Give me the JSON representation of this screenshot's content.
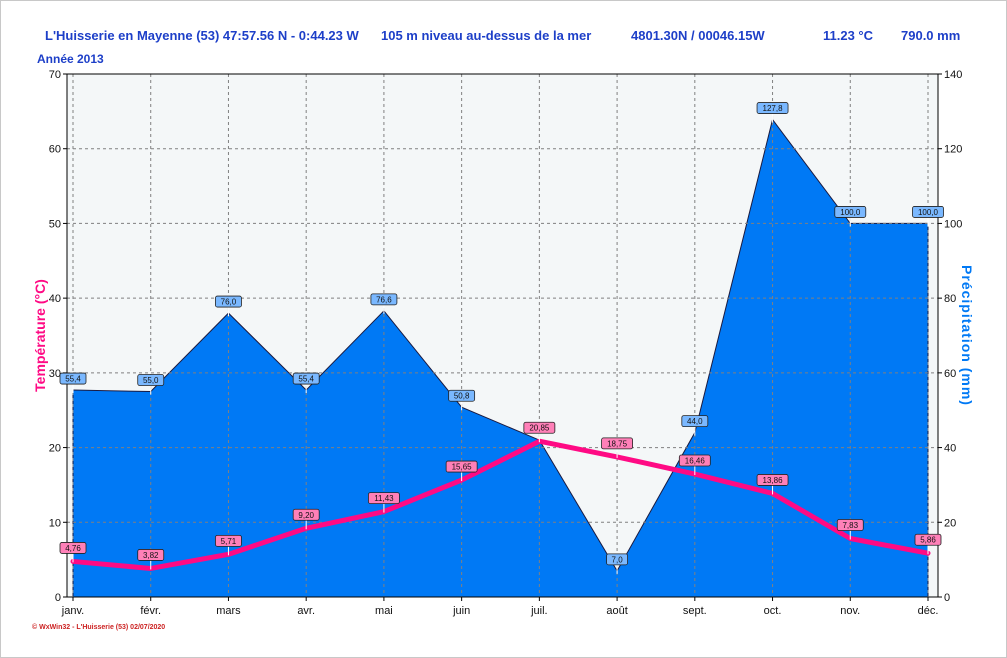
{
  "header": {
    "station": "L'Huisserie en Mayenne (53) 47:57.56 N - 0:44.23 W",
    "altitude": "105 m niveau au-dessus de la mer",
    "coords": "4801.30N / 00046.15W",
    "avg_temp": "11.23 °C",
    "total_precip": "790.0 mm",
    "year": "Année 2013"
  },
  "footer": "© WxWin32 - L'Huisserie (53) 02/07/2020",
  "colors": {
    "temperature": "#ff0a84",
    "precipitation": "#0079f5",
    "header": "#1d3fc8"
  },
  "chart_data": {
    "type": "line",
    "categories": [
      "janv.",
      "févr.",
      "mars",
      "avr.",
      "mai",
      "juin",
      "juil.",
      "août",
      "sept.",
      "oct.",
      "nov.",
      "déc."
    ],
    "series": [
      {
        "name": "Précipitation (mm)",
        "kind": "area",
        "axis": "right",
        "values": [
          55.4,
          55.0,
          76.0,
          55.4,
          76.6,
          50.8,
          42.0,
          7.0,
          44.0,
          127.8,
          100.0,
          100.0
        ],
        "labels": [
          "55,4",
          "55,0",
          "76,0",
          "55,4",
          "76,6",
          "50,8",
          "",
          "7,0",
          "44,0",
          "127,8",
          "100,0",
          "100,0"
        ]
      },
      {
        "name": "Température (°C)",
        "kind": "line",
        "axis": "left",
        "values": [
          4.76,
          3.82,
          5.71,
          9.2,
          11.43,
          15.65,
          20.85,
          18.75,
          16.46,
          13.86,
          7.83,
          5.86
        ],
        "labels": [
          "4,76",
          "3,82",
          "5,71",
          "9,20",
          "11,43",
          "15,65",
          "20,85",
          "18,75",
          "16,46",
          "13,86",
          "7,83",
          "5,86"
        ]
      }
    ],
    "ylabel": "Température (°C)",
    "y2label": "Précipitation (mm)",
    "ylim": [
      0,
      70
    ],
    "y2lim": [
      0,
      140
    ],
    "yticks": [
      0,
      10,
      20,
      30,
      40,
      50,
      60,
      70
    ],
    "y2ticks": [
      0,
      20,
      40,
      60,
      80,
      100,
      120,
      140
    ],
    "grid": true
  }
}
